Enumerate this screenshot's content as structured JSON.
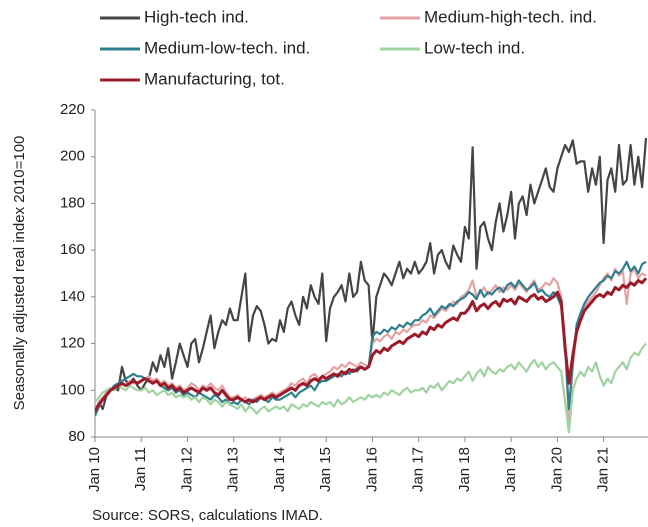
{
  "chart_data": {
    "type": "line",
    "y_label": "Seasonally adjusted real index 2010=100",
    "source": "Source: SORS, calculations IMAD.",
    "categories": [
      "Jan 10",
      null,
      null,
      null,
      null,
      null,
      null,
      null,
      null,
      null,
      null,
      null,
      "Jan 11",
      null,
      null,
      null,
      null,
      null,
      null,
      null,
      null,
      null,
      null,
      null,
      "Jan 12",
      null,
      null,
      null,
      null,
      null,
      null,
      null,
      null,
      null,
      null,
      null,
      "Jan 13",
      null,
      null,
      null,
      null,
      null,
      null,
      null,
      null,
      null,
      null,
      null,
      "Jan 14",
      null,
      null,
      null,
      null,
      null,
      null,
      null,
      null,
      null,
      null,
      null,
      "Jan 15",
      null,
      null,
      null,
      null,
      null,
      null,
      null,
      null,
      null,
      null,
      null,
      "Jan 16",
      null,
      null,
      null,
      null,
      null,
      null,
      null,
      null,
      null,
      null,
      null,
      "Jan 17",
      null,
      null,
      null,
      null,
      null,
      null,
      null,
      null,
      null,
      null,
      null,
      "Jan 18",
      null,
      null,
      null,
      null,
      null,
      null,
      null,
      null,
      null,
      null,
      null,
      "Jan 19",
      null,
      null,
      null,
      null,
      null,
      null,
      null,
      null,
      null,
      null,
      null,
      "Jan 20",
      null,
      null,
      null,
      null,
      null,
      null,
      null,
      null,
      null,
      null,
      null,
      "Jan 21",
      null,
      null,
      null,
      null,
      null,
      null,
      null,
      null,
      null,
      null,
      null
    ],
    "series": [
      {
        "name": "High-tech ind.",
        "color": "#454545",
        "values": [
          90,
          95,
          92,
          98,
          100,
          101,
          100,
          110,
          104,
          103,
          105,
          102,
          100,
          103,
          105,
          112,
          108,
          115,
          110,
          118,
          105,
          112,
          120,
          115,
          110,
          120,
          122,
          112,
          118,
          125,
          132,
          118,
          125,
          130,
          128,
          135,
          130,
          130,
          140,
          150,
          121,
          132,
          136,
          134,
          128,
          120,
          122,
          121,
          130,
          125,
          135,
          138,
          132,
          128,
          140,
          135,
          145,
          140,
          137,
          150,
          121,
          135,
          140,
          142,
          145,
          138,
          150,
          140,
          142,
          155,
          147,
          145,
          120,
          140,
          145,
          150,
          148,
          145,
          150,
          155,
          148,
          152,
          150,
          155,
          150,
          152,
          155,
          163,
          150,
          158,
          160,
          155,
          152,
          162,
          158,
          155,
          170,
          165,
          204,
          152,
          170,
          172,
          165,
          160,
          172,
          180,
          168,
          175,
          185,
          165,
          180,
          183,
          175,
          188,
          180,
          185,
          190,
          195,
          187,
          185,
          195,
          200,
          205,
          202,
          207,
          197,
          198,
          198,
          185,
          195,
          188,
          200,
          163,
          190,
          195,
          185,
          205,
          188,
          190,
          205,
          188,
          200,
          187,
          208
        ]
      },
      {
        "name": "Medium-high-tech. ind.",
        "color": "#e6a2a2",
        "values": [
          92,
          95,
          97,
          99,
          100,
          101,
          102,
          103,
          102,
          104,
          103,
          103,
          104,
          105,
          106,
          104,
          105,
          103,
          104,
          102,
          103,
          101,
          102,
          100,
          101,
          103,
          102,
          100,
          102,
          101,
          103,
          101,
          100,
          102,
          99,
          97,
          97,
          98,
          96,
          97,
          95,
          96,
          97,
          98,
          97,
          98,
          99,
          98,
          99,
          100,
          101,
          103,
          102,
          104,
          105,
          103,
          106,
          107,
          105,
          106,
          107,
          108,
          110,
          109,
          111,
          110,
          112,
          111,
          110,
          112,
          111,
          110,
          120,
          122,
          121,
          123,
          124,
          122,
          125,
          124,
          126,
          125,
          127,
          128,
          128,
          130,
          129,
          132,
          131,
          133,
          135,
          134,
          136,
          138,
          137,
          140,
          141,
          143,
          147,
          140,
          142,
          144,
          141,
          143,
          145,
          142,
          144,
          143,
          145,
          143,
          146,
          144,
          142,
          145,
          147,
          143,
          144,
          146,
          145,
          148,
          146,
          140,
          120,
          85,
          110,
          125,
          130,
          135,
          138,
          140,
          142,
          145,
          148,
          150,
          147,
          152,
          149,
          151,
          137,
          150,
          152,
          148,
          150,
          149
        ]
      },
      {
        "name": "Medium-low-tech. ind.",
        "color": "#2f7f8e",
        "values": [
          89,
          93,
          96,
          98,
          100,
          102,
          103,
          104,
          105,
          106,
          107,
          106,
          106,
          105,
          104,
          103,
          104,
          102,
          101,
          100,
          101,
          99,
          100,
          98,
          99,
          98,
          97,
          99,
          98,
          97,
          96,
          98,
          97,
          95,
          96,
          94,
          95,
          94,
          96,
          95,
          94,
          96,
          95,
          97,
          96,
          95,
          97,
          96,
          96,
          97,
          98,
          99,
          97,
          99,
          100,
          101,
          102,
          100,
          103,
          104,
          104,
          105,
          106,
          107,
          106,
          108,
          107,
          109,
          108,
          110,
          109,
          110,
          123,
          125,
          124,
          126,
          125,
          127,
          126,
          128,
          127,
          129,
          128,
          130,
          130,
          132,
          133,
          135,
          132,
          134,
          136,
          135,
          137,
          136,
          138,
          139,
          140,
          142,
          141,
          139,
          143,
          140,
          142,
          141,
          143,
          144,
          142,
          145,
          146,
          144,
          147,
          145,
          143,
          144,
          146,
          142,
          143,
          141,
          140,
          142,
          140,
          136,
          118,
          92,
          112,
          128,
          133,
          137,
          140,
          142,
          144,
          146,
          147,
          149,
          148,
          151,
          150,
          152,
          155,
          151,
          153,
          150,
          154,
          155
        ]
      },
      {
        "name": "Low-tech ind.",
        "color": "#9fd3a0",
        "values": [
          95,
          97,
          99,
          100,
          101,
          100,
          102,
          101,
          100,
          102,
          101,
          100,
          100,
          101,
          99,
          100,
          98,
          99,
          100,
          98,
          99,
          97,
          98,
          97,
          98,
          96,
          97,
          95,
          97,
          96,
          94,
          96,
          95,
          93,
          95,
          94,
          93,
          92,
          94,
          91,
          93,
          92,
          90,
          92,
          93,
          91,
          92,
          93,
          92,
          93,
          91,
          94,
          93,
          92,
          94,
          93,
          95,
          94,
          93,
          95,
          94,
          95,
          93,
          96,
          94,
          95,
          97,
          95,
          96,
          97,
          96,
          98,
          97,
          98,
          97,
          99,
          98,
          100,
          99,
          98,
          100,
          101,
          99,
          100,
          100,
          101,
          99,
          102,
          101,
          103,
          100,
          102,
          104,
          103,
          105,
          104,
          106,
          108,
          104,
          107,
          109,
          106,
          110,
          108,
          107,
          109,
          108,
          110,
          111,
          109,
          112,
          110,
          108,
          111,
          113,
          110,
          112,
          109,
          111,
          112,
          110,
          108,
          95,
          82,
          100,
          105,
          108,
          106,
          110,
          108,
          112,
          106,
          102,
          105,
          103,
          108,
          110,
          112,
          109,
          114,
          116,
          115,
          118,
          120
        ]
      },
      {
        "name": "Manufacturing, tot.",
        "color": "#9b1b2b",
        "values": [
          91,
          94,
          96,
          98,
          100,
          101,
          102,
          103,
          102,
          103,
          104,
          103,
          104,
          105,
          104,
          103,
          104,
          102,
          103,
          101,
          102,
          100,
          101,
          99,
          100,
          101,
          100,
          99,
          101,
          100,
          101,
          99,
          98,
          100,
          98,
          96,
          96,
          97,
          96,
          95,
          96,
          95,
          96,
          97,
          96,
          97,
          98,
          97,
          98,
          99,
          100,
          101,
          100,
          102,
          103,
          102,
          104,
          105,
          104,
          106,
          105,
          106,
          107,
          106,
          108,
          107,
          109,
          108,
          109,
          110,
          109,
          110,
          115,
          117,
          116,
          118,
          117,
          119,
          120,
          121,
          120,
          122,
          123,
          124,
          123,
          125,
          124,
          127,
          126,
          128,
          127,
          129,
          130,
          131,
          130,
          133,
          133,
          135,
          138,
          134,
          136,
          137,
          135,
          137,
          138,
          136,
          139,
          138,
          139,
          137,
          140,
          139,
          138,
          140,
          141,
          139,
          140,
          138,
          139,
          140,
          142,
          138,
          118,
          103,
          115,
          125,
          130,
          134,
          136,
          138,
          140,
          141,
          140,
          142,
          141,
          144,
          143,
          145,
          144,
          146,
          145,
          147,
          146,
          148
        ]
      }
    ],
    "ylim": [
      80,
      220
    ],
    "yticks": [
      80,
      100,
      120,
      140,
      160,
      180,
      200,
      220
    ],
    "grid": false,
    "legend": "top"
  }
}
